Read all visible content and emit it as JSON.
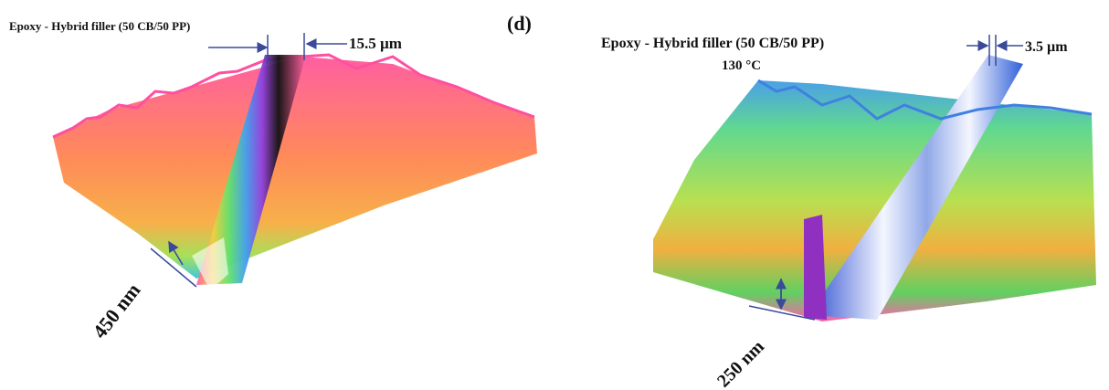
{
  "panel_label": "(d)",
  "panels": [
    {
      "title": "Epoxy - Hybrid filler (50 CB/50 PP)",
      "width_label": "15.5 µm",
      "depth_label": "450 nm"
    },
    {
      "title": "Epoxy - Hybrid filler (50 CB/50 PP)",
      "temperature": "130 °C",
      "width_label": "3.5 µm",
      "depth_label": "250 nm"
    }
  ]
}
